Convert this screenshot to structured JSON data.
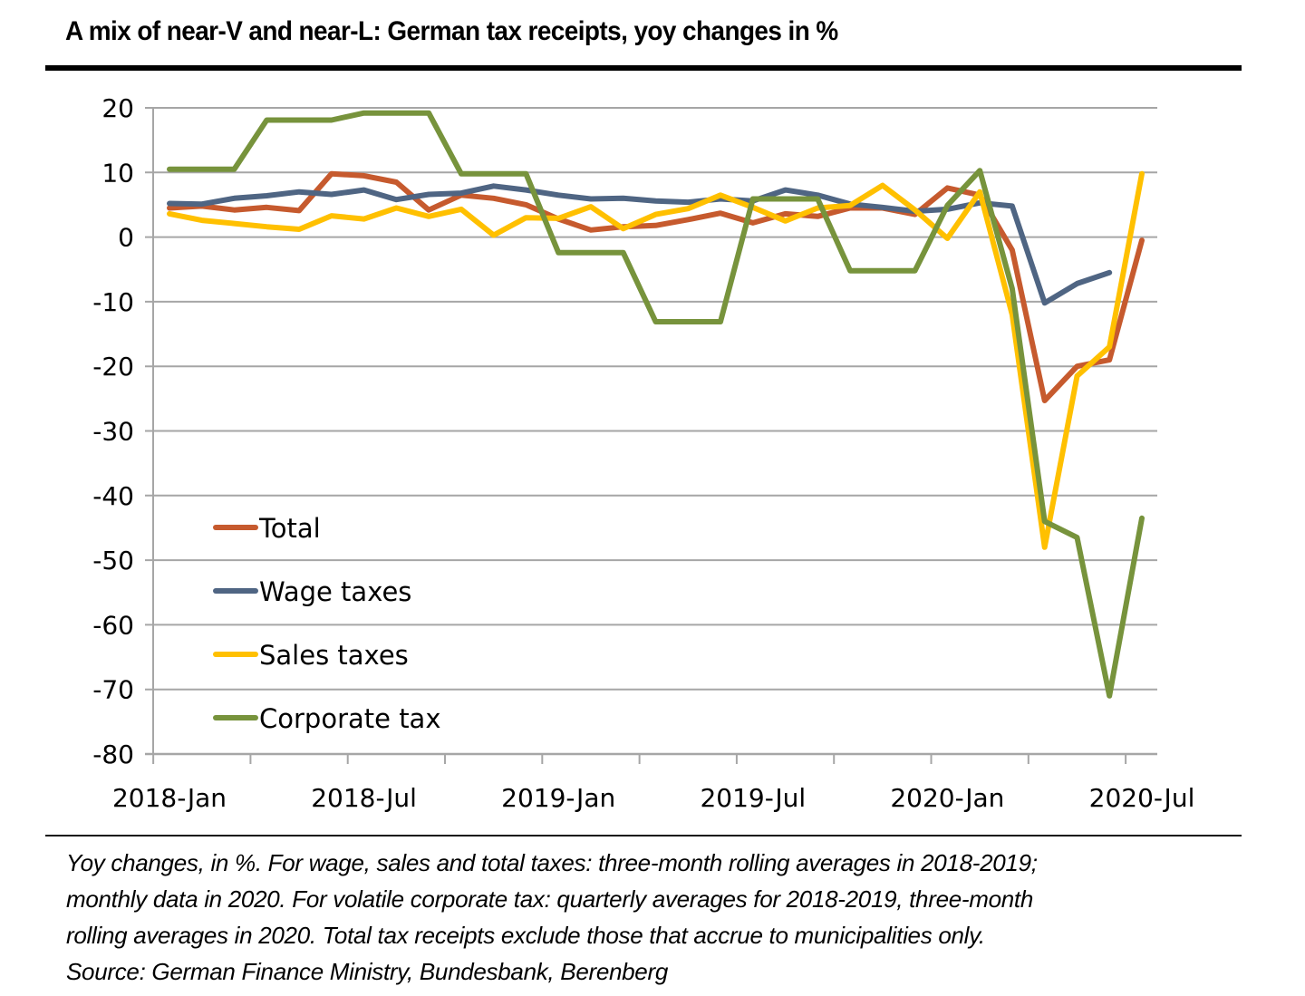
{
  "title": "A mix of near-V and near-L: German tax receipts, yoy changes in %",
  "footnote": [
    "Yoy changes, in %. For wage, sales and total taxes: three-month rolling averages in 2018-2019;",
    "monthly data in 2020. For volatile corporate tax: quarterly averages for 2018-2019, three-month",
    "rolling averages in 2020. Total tax receipts exclude those that accrue to municipalities only.",
    "Source: German Finance Ministry, Bundesbank, Berenberg"
  ],
  "chart_data": {
    "type": "line",
    "title": "A mix of near-V and near-L: German tax receipts, yoy changes in %",
    "xlabel": "",
    "ylabel": "",
    "ylim": [
      -80,
      20
    ],
    "yticks": [
      20,
      10,
      0,
      -10,
      -20,
      -30,
      -40,
      -50,
      -60,
      -70,
      -80
    ],
    "xtick_labels": [
      "2018-Jan",
      "2018-Jul",
      "2019-Jan",
      "2019-Jul",
      "2020-Jan",
      "2020-Jul"
    ],
    "xtick_label_indices": [
      0,
      6,
      12,
      18,
      24,
      30
    ],
    "grid": "horizontal",
    "legend_position": "bottom-left",
    "x": [
      "2018-Jan",
      "2018-Feb",
      "2018-Mar",
      "2018-Apr",
      "2018-May",
      "2018-Jun",
      "2018-Jul",
      "2018-Aug",
      "2018-Sep",
      "2018-Oct",
      "2018-Nov",
      "2018-Dec",
      "2019-Jan",
      "2019-Feb",
      "2019-Mar",
      "2019-Apr",
      "2019-May",
      "2019-Jun",
      "2019-Jul",
      "2019-Aug",
      "2019-Sep",
      "2019-Oct",
      "2019-Nov",
      "2019-Dec",
      "2020-Jan",
      "2020-Feb",
      "2020-Mar",
      "2020-Apr",
      "2020-May",
      "2020-Jun",
      "2020-Jul"
    ],
    "series": [
      {
        "name": "Total",
        "color": "#C65A2E",
        "values": [
          4.5,
          4.8,
          4.2,
          4.6,
          4.1,
          9.8,
          9.5,
          8.5,
          4.2,
          6.5,
          6.0,
          5.0,
          2.8,
          1.1,
          1.6,
          1.8,
          2.7,
          3.7,
          2.2,
          3.6,
          3.2,
          4.5,
          4.5,
          3.5,
          7.6,
          6.5,
          -2.0,
          -25.3,
          -20.0,
          -19.0,
          -0.5
        ]
      },
      {
        "name": "Wage taxes",
        "color": "#4F6583",
        "values": [
          5.2,
          5.1,
          6.0,
          6.4,
          7.0,
          6.6,
          7.3,
          5.8,
          6.6,
          6.8,
          7.9,
          7.3,
          6.5,
          5.9,
          6.0,
          5.6,
          5.4,
          5.9,
          5.6,
          7.3,
          6.5,
          5.1,
          4.6,
          4.0,
          4.3,
          5.3,
          4.8,
          -10.2,
          -7.2,
          -5.5,
          null
        ]
      },
      {
        "name": "Sales taxes",
        "color": "#FFC000",
        "values": [
          3.6,
          2.6,
          2.1,
          1.6,
          1.2,
          3.3,
          2.8,
          4.5,
          3.2,
          4.3,
          0.3,
          3.0,
          2.9,
          4.7,
          1.3,
          3.5,
          4.4,
          6.5,
          4.6,
          2.5,
          4.5,
          4.9,
          8.0,
          4.2,
          -0.2,
          7.0,
          -12.0,
          -48.0,
          -21.5,
          -17.0,
          9.8
        ]
      },
      {
        "name": "Corporate tax",
        "color": "#77933C",
        "values": [
          10.5,
          10.5,
          10.5,
          18.1,
          18.1,
          18.1,
          19.2,
          19.2,
          19.2,
          9.8,
          9.8,
          9.8,
          -2.4,
          -2.4,
          -2.4,
          -13.1,
          -13.1,
          -13.1,
          5.9,
          5.9,
          5.9,
          -5.2,
          -5.2,
          -5.2,
          4.9,
          10.3,
          -8.0,
          -44.0,
          -46.5,
          -71.0,
          -43.5
        ]
      }
    ]
  }
}
